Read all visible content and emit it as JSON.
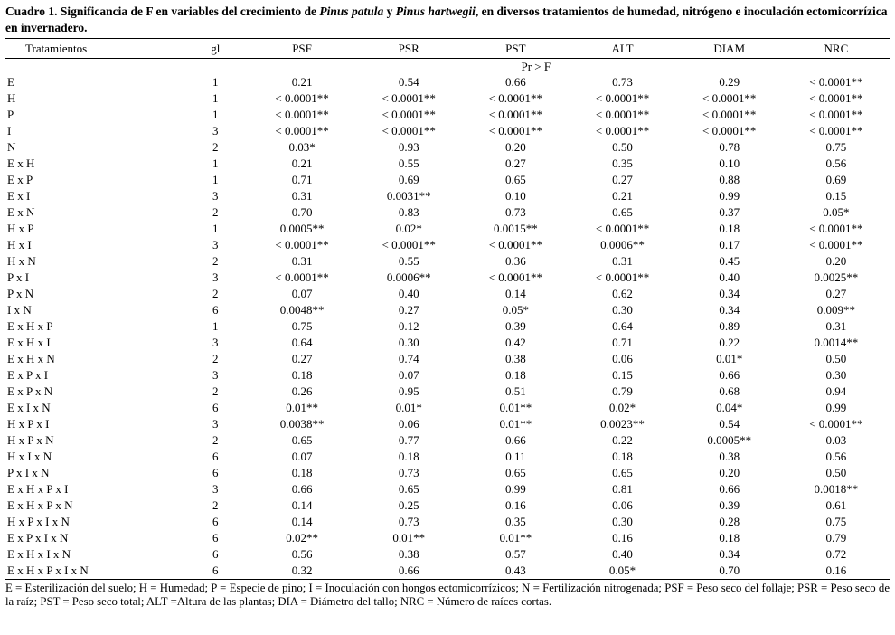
{
  "caption": {
    "prefix": "Cuadro 1. Significancia de F en variables del crecimiento de ",
    "species_1": "Pinus patula",
    "connector": " y ",
    "species_2": "Pinus hartwegii",
    "suffix": ", en diversos tratamientos de humedad, nitrógeno e inoculación ectomicorrízica en invernadero."
  },
  "table": {
    "columns": [
      "Tratamientos",
      "gl",
      "PSF",
      "PSR",
      "PST",
      "ALT",
      "DIAM",
      "NRC"
    ],
    "subheader": "Pr > F",
    "rows": [
      [
        "E",
        "1",
        "0.21",
        "0.54",
        "0.66",
        "0.73",
        "0.29",
        "< 0.0001**"
      ],
      [
        "H",
        "1",
        "< 0.0001**",
        "< 0.0001**",
        "< 0.0001**",
        "< 0.0001**",
        "< 0.0001**",
        "< 0.0001**"
      ],
      [
        "P",
        "1",
        "< 0.0001**",
        "< 0.0001**",
        "< 0.0001**",
        "< 0.0001**",
        "< 0.0001**",
        "< 0.0001**"
      ],
      [
        "I",
        "3",
        "< 0.0001**",
        "< 0.0001**",
        "< 0.0001**",
        "< 0.0001**",
        "< 0.0001**",
        "< 0.0001**"
      ],
      [
        "N",
        "2",
        "0.03*",
        "0.93",
        "0.20",
        "0.50",
        "0.78",
        "0.75"
      ],
      [
        "E x H",
        "1",
        "0.21",
        "0.55",
        "0.27",
        "0.35",
        "0.10",
        "0.56"
      ],
      [
        "E x P",
        "1",
        "0.71",
        "0.69",
        "0.65",
        "0.27",
        "0.88",
        "0.69"
      ],
      [
        "E x I",
        "3",
        "0.31",
        "0.0031**",
        "0.10",
        "0.21",
        "0.99",
        "0.15"
      ],
      [
        "E x N",
        "2",
        "0.70",
        "0.83",
        "0.73",
        "0.65",
        "0.37",
        "0.05*"
      ],
      [
        "H x P",
        "1",
        "0.0005**",
        "0.02*",
        "0.0015**",
        "< 0.0001**",
        "0.18",
        "< 0.0001**"
      ],
      [
        "H x I",
        "3",
        "< 0.0001**",
        "< 0.0001**",
        "< 0.0001**",
        "0.0006**",
        "0.17",
        "< 0.0001**"
      ],
      [
        "H x N",
        "2",
        "0.31",
        "0.55",
        "0.36",
        "0.31",
        "0.45",
        "0.20"
      ],
      [
        "P x I",
        "3",
        "< 0.0001**",
        "0.0006**",
        "< 0.0001**",
        "< 0.0001**",
        "0.40",
        "0.0025**"
      ],
      [
        "P x N",
        "2",
        "0.07",
        "0.40",
        "0.14",
        "0.62",
        "0.34",
        "0.27"
      ],
      [
        "I x N",
        "6",
        "0.0048**",
        "0.27",
        "0.05*",
        "0.30",
        "0.34",
        "0.009**"
      ],
      [
        "E x H x P",
        "1",
        "0.75",
        "0.12",
        "0.39",
        "0.64",
        "0.89",
        "0.31"
      ],
      [
        "E x H x I",
        "3",
        "0.64",
        "0.30",
        "0.42",
        "0.71",
        "0.22",
        "0.0014**"
      ],
      [
        "E x H x N",
        "2",
        "0.27",
        "0.74",
        "0.38",
        "0.06",
        "0.01*",
        "0.50"
      ],
      [
        "E x P x I",
        "3",
        "0.18",
        "0.07",
        "0.18",
        "0.15",
        "0.66",
        "0.30"
      ],
      [
        "E x P x N",
        "2",
        "0.26",
        "0.95",
        "0.51",
        "0.79",
        "0.68",
        "0.94"
      ],
      [
        "E x I x N",
        "6",
        "0.01**",
        "0.01*",
        "0.01**",
        "0.02*",
        "0.04*",
        "0.99"
      ],
      [
        "H x P x I",
        "3",
        "0.0038**",
        "0.06",
        "0.01**",
        "0.0023**",
        "0.54",
        "< 0.0001**"
      ],
      [
        "H x P x N",
        "2",
        "0.65",
        "0.77",
        "0.66",
        "0.22",
        "0.0005**",
        "0.03"
      ],
      [
        "H x I x N",
        "6",
        "0.07",
        "0.18",
        "0.11",
        "0.18",
        "0.38",
        "0.56"
      ],
      [
        "P x I x N",
        "6",
        "0.18",
        "0.73",
        "0.65",
        "0.65",
        "0.20",
        "0.50"
      ],
      [
        "E x H x P x I",
        "3",
        "0.66",
        "0.65",
        "0.99",
        "0.81",
        "0.66",
        "0.0018**"
      ],
      [
        "E x H x P x N",
        "2",
        "0.14",
        "0.25",
        "0.16",
        "0.06",
        "0.39",
        "0.61"
      ],
      [
        "H x P x I x N",
        "6",
        "0.14",
        "0.73",
        "0.35",
        "0.30",
        "0.28",
        "0.75"
      ],
      [
        "E x P x I x N",
        "6",
        "0.02**",
        "0.01**",
        "0.01**",
        "0.16",
        "0.18",
        "0.79"
      ],
      [
        "E x H x I x N",
        "6",
        "0.56",
        "0.38",
        "0.57",
        "0.40",
        "0.34",
        "0.72"
      ],
      [
        "E x H x P x I x N",
        "6",
        "0.32",
        "0.66",
        "0.43",
        "0.05*",
        "0.70",
        "0.16"
      ]
    ]
  },
  "footnote": "E = Esterilización del suelo; H = Humedad; P = Especie de pino; I = Inoculación con hongos ectomicorrízicos; N = Fertilización nitrogenada;  PSF = Peso seco del follaje; PSR = Peso seco de la raíz; PST = Peso seco total; ALT =Altura de las plantas; DIA = Diámetro del tallo; NRC = Número de raíces cortas."
}
